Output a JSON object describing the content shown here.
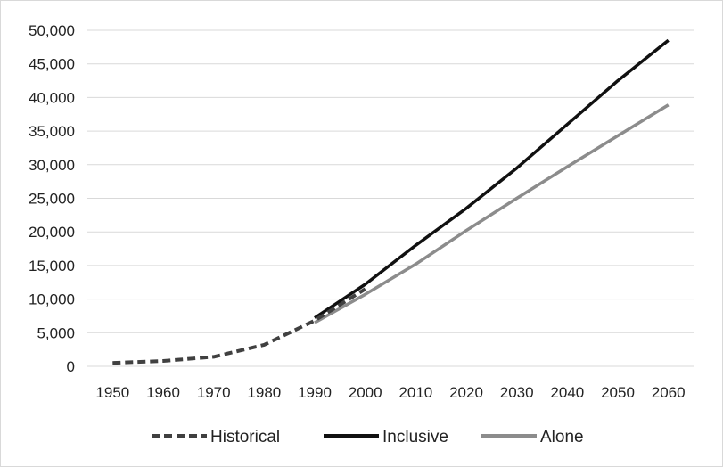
{
  "chart_data": {
    "type": "line",
    "title": "",
    "xlabel": "",
    "ylabel": "",
    "x": [
      1950,
      1960,
      1970,
      1980,
      1990,
      2000,
      2010,
      2020,
      2030,
      2040,
      2050,
      2060
    ],
    "x_tick_labels": [
      "1950",
      "1960",
      "1970",
      "1980",
      "1990",
      "2000",
      "2010",
      "2020",
      "2030",
      "2040",
      "2050",
      "2060"
    ],
    "ylim": [
      0,
      50000
    ],
    "y_ticks": [
      0,
      5000,
      10000,
      15000,
      20000,
      25000,
      30000,
      35000,
      40000,
      45000,
      50000
    ],
    "y_tick_labels": [
      "0",
      "5,000",
      "10,000",
      "15,000",
      "20,000",
      "25,000",
      "30,000",
      "35,000",
      "40,000",
      "45,000",
      "50,000"
    ],
    "grid": true,
    "legend_position": "bottom",
    "series": [
      {
        "name": "Historical",
        "style": "dashed",
        "color": "#404040",
        "points": [
          [
            1950,
            500
          ],
          [
            1960,
            800
          ],
          [
            1970,
            1400
          ],
          [
            1980,
            3200
          ],
          [
            1990,
            6800
          ],
          [
            2000,
            11500
          ]
        ]
      },
      {
        "name": "Inclusive",
        "style": "solid",
        "color": "#111111",
        "points": [
          [
            1990,
            7200
          ],
          [
            2000,
            12200
          ],
          [
            2010,
            18000
          ],
          [
            2020,
            23500
          ],
          [
            2030,
            29500
          ],
          [
            2040,
            36000
          ],
          [
            2050,
            42500
          ],
          [
            2060,
            48500
          ]
        ]
      },
      {
        "name": "Alone",
        "style": "solid",
        "color": "#8c8c8c",
        "points": [
          [
            1990,
            6500
          ],
          [
            2000,
            10700
          ],
          [
            2010,
            15200
          ],
          [
            2020,
            20200
          ],
          [
            2030,
            25000
          ],
          [
            2040,
            29700
          ],
          [
            2050,
            34300
          ],
          [
            2060,
            38900
          ]
        ]
      }
    ]
  }
}
